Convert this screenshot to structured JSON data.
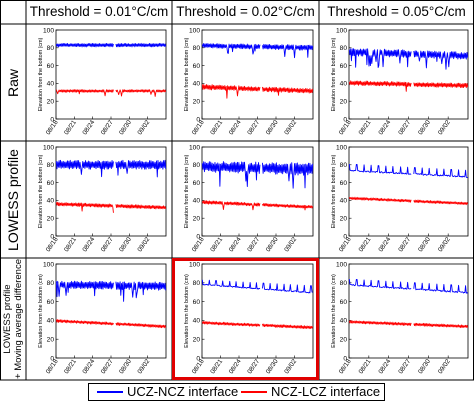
{
  "columns": [
    "Threshold = 0.01°C/cm",
    "Threshold = 0.02°C/cm",
    "Threshold = 0.05°C/cm"
  ],
  "rows": [
    {
      "label": "Raw",
      "lines": [
        "Raw"
      ]
    },
    {
      "label": "LOWESS profile",
      "lines": [
        "LOWESS profile"
      ]
    },
    {
      "label": "LOWESS profile + Moving average difference",
      "lines": [
        "LOWESS profile",
        "+ Moving average difference"
      ]
    }
  ],
  "legend": [
    {
      "name": "UCZ-NCZ interface",
      "color": "#0000ff"
    },
    {
      "name": "NCZ-LCZ interface",
      "color": "#ff0000"
    }
  ],
  "highlight": {
    "row": 2,
    "col": 1,
    "color": "#e00000"
  },
  "chart_data": {
    "type": "line",
    "ylabel": "Elevation from the bottom (cm)",
    "ylim": [
      0,
      100
    ],
    "yticks": [
      0,
      20,
      40,
      60,
      80,
      100
    ],
    "xlim": [
      "08/18",
      "09/05"
    ],
    "xticks": [
      "08/18",
      "08/21",
      "08/24",
      "08/27",
      "08/30",
      "09/02"
    ],
    "data_gap": [
      "08/27",
      "08/28"
    ],
    "panels": [
      {
        "row": "Raw",
        "threshold": "0.01°C/cm",
        "series": [
          {
            "name": "UCZ-NCZ interface",
            "band": [
              [
                81,
                85
              ],
              [
                81,
                85
              ]
            ],
            "spikes": "none"
          },
          {
            "name": "NCZ-LCZ interface",
            "band": [
              [
                30,
                33
              ],
              [
                30,
                33
              ]
            ],
            "spikes": "few"
          }
        ]
      },
      {
        "row": "Raw",
        "threshold": "0.02°C/cm",
        "series": [
          {
            "name": "UCZ-NCZ interface",
            "band": [
              [
                80,
                85
              ],
              [
                77,
                83
              ]
            ],
            "spikes": "many"
          },
          {
            "name": "NCZ-LCZ interface",
            "band": [
              [
                33,
                39
              ],
              [
                29,
                34
              ]
            ],
            "spikes": "few"
          }
        ]
      },
      {
        "row": "Raw",
        "threshold": "0.05°C/cm",
        "series": [
          {
            "name": "UCZ-NCZ interface",
            "band": [
              [
                71,
                80
              ],
              [
                67,
                75
              ]
            ],
            "spikes": "dense"
          },
          {
            "name": "NCZ-LCZ interface",
            "band": [
              [
                38,
                43
              ],
              [
                35,
                40
              ]
            ],
            "spikes": "few"
          }
        ]
      },
      {
        "row": "LOWESS profile",
        "threshold": "0.01°C/cm",
        "series": [
          {
            "name": "UCZ-NCZ interface",
            "band": [
              [
                75,
                85
              ],
              [
                75,
                85
              ]
            ],
            "spikes": "many"
          },
          {
            "name": "NCZ-LCZ interface",
            "band": [
              [
                34,
                38
              ],
              [
                30,
                34
              ]
            ],
            "spikes": "few"
          }
        ]
      },
      {
        "row": "LOWESS profile",
        "threshold": "0.02°C/cm",
        "series": [
          {
            "name": "UCZ-NCZ interface",
            "band": [
              [
                72,
                84
              ],
              [
                68,
                82
              ]
            ],
            "spikes": "many"
          },
          {
            "name": "NCZ-LCZ interface",
            "band": [
              [
                36,
                40
              ],
              [
                31,
                34
              ]
            ],
            "spikes": "few"
          }
        ]
      },
      {
        "row": "LOWESS profile",
        "threshold": "0.05°C/cm",
        "series": [
          {
            "name": "UCZ-NCZ interface",
            "band": [
              [
                70,
                76
              ],
              [
                63,
                69
              ]
            ],
            "spikes": "periodic"
          },
          {
            "name": "NCZ-LCZ interface",
            "band": [
              [
                41,
                44
              ],
              [
                35,
                38
              ]
            ],
            "spikes": "none"
          }
        ]
      },
      {
        "row": "LOWESS profile + Moving average difference",
        "threshold": "0.01°C/cm",
        "series": [
          {
            "name": "UCZ-NCZ interface",
            "band": [
              [
                74,
                82
              ],
              [
                72,
                81
              ]
            ],
            "spikes": "many"
          },
          {
            "name": "NCZ-LCZ interface",
            "band": [
              [
                38,
                41
              ],
              [
                32,
                35
              ]
            ],
            "spikes": "none"
          }
        ]
      },
      {
        "row": "LOWESS profile + Moving average difference",
        "threshold": "0.02°C/cm",
        "series": [
          {
            "name": "UCZ-NCZ interface",
            "band": [
              [
                76,
                80
              ],
              [
                66,
                72
              ]
            ],
            "spikes": "periodic"
          },
          {
            "name": "NCZ-LCZ interface",
            "band": [
              [
                36,
                39
              ],
              [
                31,
                34
              ]
            ],
            "spikes": "none"
          }
        ]
      },
      {
        "row": "LOWESS profile + Moving average difference",
        "threshold": "0.05°C/cm",
        "series": [
          {
            "name": "UCZ-NCZ interface",
            "band": [
              [
                75,
                80
              ],
              [
                66,
                72
              ]
            ],
            "spikes": "periodic"
          },
          {
            "name": "NCZ-LCZ interface",
            "band": [
              [
                37,
                40
              ],
              [
                32,
                35
              ]
            ],
            "spikes": "none"
          }
        ]
      }
    ]
  }
}
